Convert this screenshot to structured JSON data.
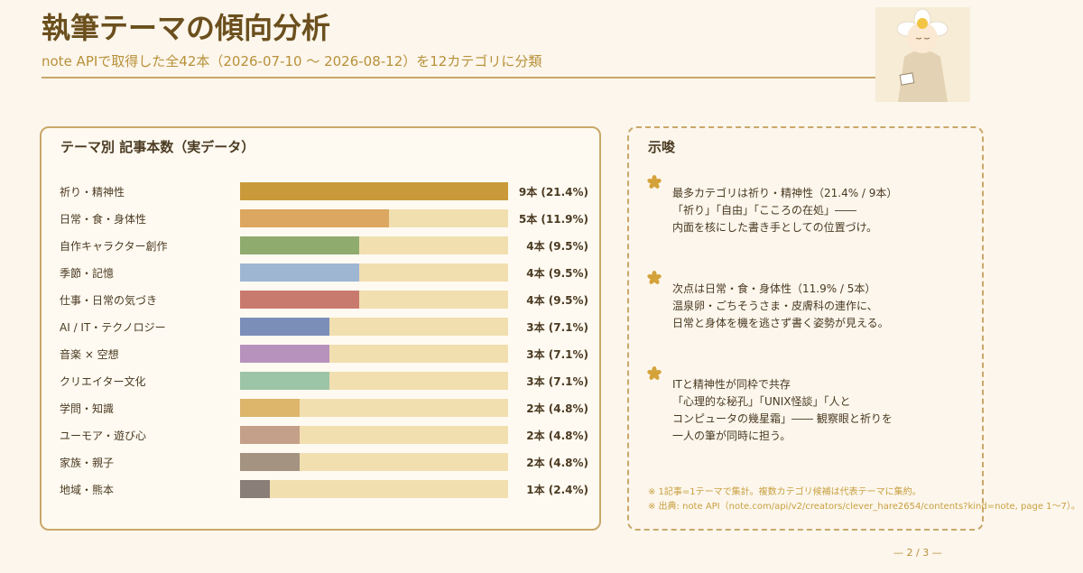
{
  "header": {
    "title": "執筆テーマの傾向分析",
    "subtitle": "note APIで取得した全42本（2026-07-10 〜 2026-08-12）を12カテゴリに分類"
  },
  "chart_data": {
    "type": "bar",
    "title": "テーマ別 記事本数（実データ）",
    "categories": [
      "祈り・精神性",
      "日常・食・身体性",
      "自作キャラクター創作",
      "季節・記憶",
      "仕事・日常の気づき",
      "AI / IT・テクノロジー",
      "音楽 × 空想",
      "クリエイター文化",
      "学問・知識",
      "ユーモア・遊び心",
      "家族・親子",
      "地域・熊本"
    ],
    "values": [
      9,
      5,
      4,
      4,
      4,
      3,
      3,
      3,
      2,
      2,
      2,
      1
    ],
    "value_labels": [
      "9本 (21.4%)",
      "5本 (11.9%)",
      "4本 (9.5%)",
      "4本 (9.5%)",
      "4本 (9.5%)",
      "3本 (7.1%)",
      "3本 (7.1%)",
      "3本 (7.1%)",
      "2本 (4.8%)",
      "2本 (4.8%)",
      "2本 (4.8%)",
      "1本 (2.4%)"
    ],
    "colors": [
      "#c99a3a",
      "#dca760",
      "#8fab6e",
      "#9fb6d3",
      "#c97a6e",
      "#7a8eb8",
      "#b792bd",
      "#9cc4a6",
      "#ddb56b",
      "#c4a08a",
      "#a39380",
      "#8a7f78"
    ],
    "track_color": "#f2dfb0",
    "xlim": [
      0,
      9
    ]
  },
  "insights": {
    "title": "示唆",
    "items": [
      [
        "最多カテゴリは祈り・精神性（21.4% / 9本）",
        "「祈り」「自由」「こころの在処」――",
        "内面を核にした書き手としての位置づけ。"
      ],
      [
        "次点は日常・食・身体性（11.9% / 5本）",
        "温泉卵・ごちそうさま・皮膚科の連作に、",
        "日常と身体を機を逃さず書く姿勢が見える。"
      ],
      [
        "ITと精神性が同枠で共存",
        "「心理的な秘孔」「UNIX怪談」「人と",
        "コンピュータの幾星霜」―― 観察眼と祈りを",
        "一人の筆が同時に担う。"
      ]
    ]
  },
  "footnotes": [
    "※ 1記事=1テーマで集計。複数カテゴリ候補は代表テーマに集約。",
    "※ 出典: note API（note.com/api/v2/creators/clever_hare2654/contents?kind=note, page 1〜7）。"
  ],
  "page_number": "— 2 / 3 —"
}
